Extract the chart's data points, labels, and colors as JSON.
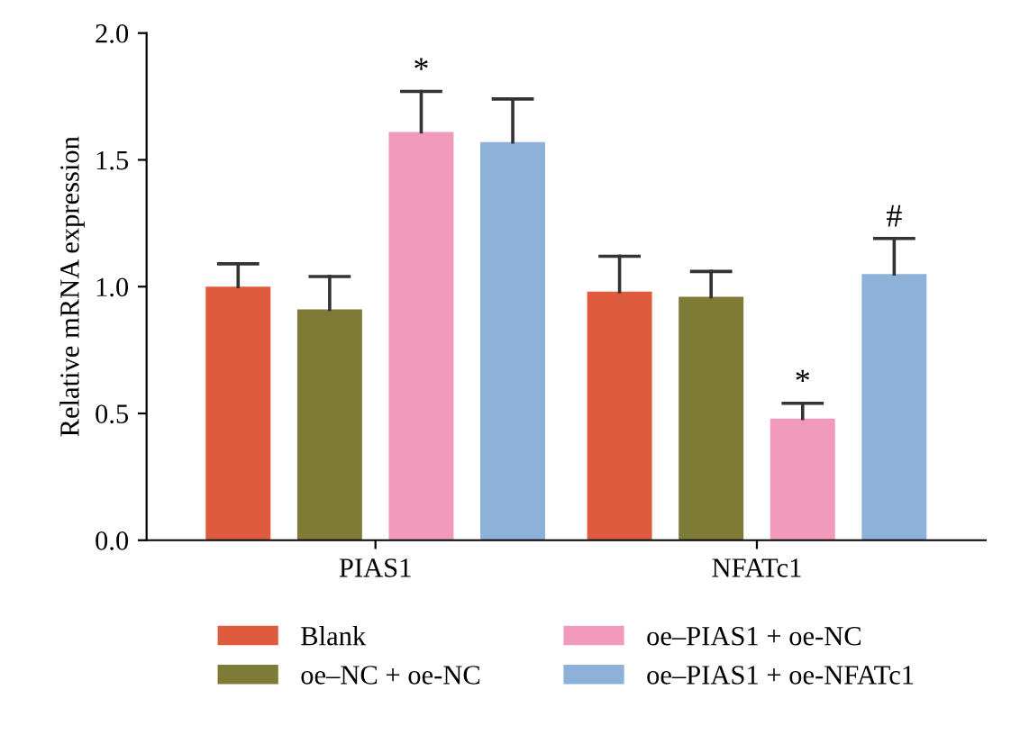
{
  "chart_data": {
    "type": "bar",
    "ylabel": "Relative mRNA expression",
    "categories": [
      "PIAS1",
      "NFATc1"
    ],
    "series": [
      {
        "name": "Blank",
        "color": "#df5b3d",
        "values": [
          1.0,
          0.98
        ],
        "errors": [
          0.09,
          0.14
        ]
      },
      {
        "name": "oe–NC + oe-NC",
        "color": "#7d7b35",
        "values": [
          0.91,
          0.96
        ],
        "errors": [
          0.13,
          0.1
        ]
      },
      {
        "name": "oe–PIAS1 + oe-NC",
        "color": "#f29abb",
        "values": [
          1.61,
          0.48
        ],
        "errors": [
          0.16,
          0.06
        ],
        "value_labels": [
          "*",
          "*"
        ]
      },
      {
        "name": "oe–PIAS1 + oe-NFATc1",
        "color": "#8db1d8",
        "values": [
          1.57,
          1.05
        ],
        "errors": [
          0.17,
          0.14
        ],
        "value_labels": [
          null,
          "#"
        ]
      }
    ],
    "ylim": [
      0,
      2.0
    ],
    "yticks": [
      {
        "value": 0,
        "label": "0.0"
      },
      {
        "value": 0.5,
        "label": "0.5"
      },
      {
        "value": 1.0,
        "label": "1.0"
      },
      {
        "value": 1.5,
        "label": "1.5"
      },
      {
        "value": 2.0,
        "label": "2.0"
      }
    ],
    "grid": false,
    "legend": "bottom"
  }
}
